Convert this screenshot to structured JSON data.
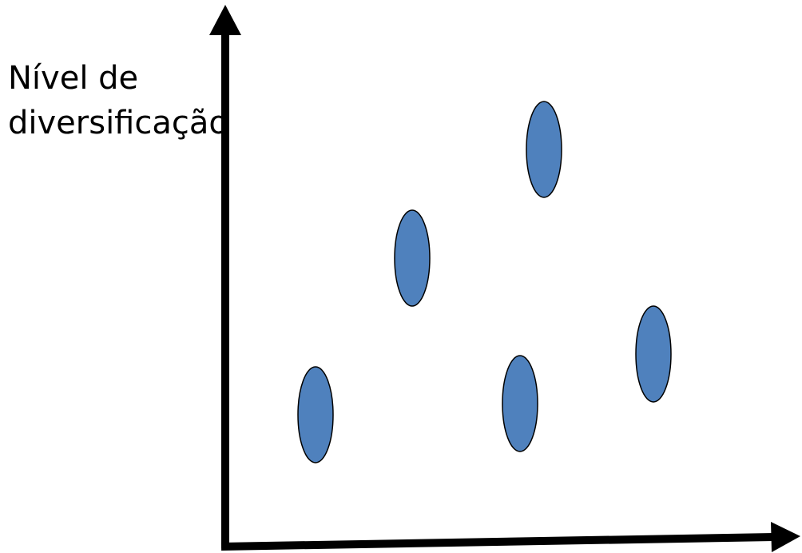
{
  "diagram": {
    "y_axis_label_line1": "Nível de",
    "y_axis_label_line2": "diversificação",
    "x_axis_label": "",
    "marker_color": "#4F81BD",
    "marker_outline_color": "#000000",
    "axis_color": "#000000",
    "marker_count": 5
  }
}
